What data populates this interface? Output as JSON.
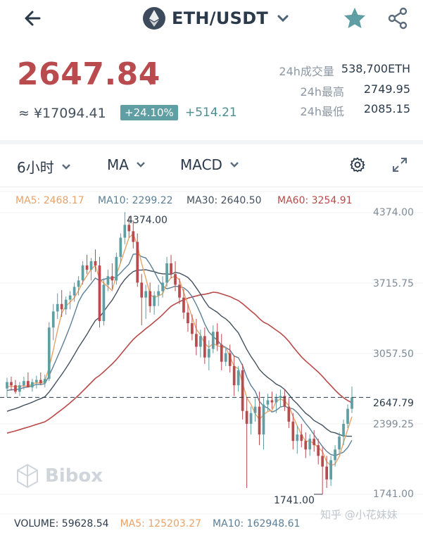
{
  "header": {
    "pair": "ETH/USDT"
  },
  "ticker": {
    "last_price": "2647.84",
    "cny_prefix": "≈",
    "cny_value": "¥17094.41",
    "change_pct": "+24.10%",
    "change_abs": "+514.21",
    "stats": [
      {
        "label": "24h成交量",
        "value": "538,700ETH"
      },
      {
        "label": "24h最高",
        "value": "2749.95"
      },
      {
        "label": "24h最低",
        "value": "2085.15"
      }
    ]
  },
  "toolbar": {
    "interval": "6小时",
    "main_indicator": "MA",
    "sub_indicator": "MACD"
  },
  "ma_legend": [
    {
      "text": "MA5: 2468.17",
      "color": "#e8a36b"
    },
    {
      "text": "MA10: 2299.22",
      "color": "#5b7f97"
    },
    {
      "text": "MA30: 2640.50",
      "color": "#44505e"
    },
    {
      "text": "MA60: 3254.91",
      "color": "#b84a49"
    }
  ],
  "y_axis": [
    "4374.00",
    "3715.75",
    "3057.50",
    "2399.25",
    "1741.00"
  ],
  "current_price_label": "2647.79",
  "high_label": "4374.00",
  "low_label": "1741.00",
  "watermark": "Bibox",
  "credit": "知乎 @小花妹妹",
  "volume_legend": [
    {
      "text": "VOLUME: 59628.54",
      "color": "#2b3a4a"
    },
    {
      "text": "MA5: 125203.27",
      "color": "#e8a36b"
    },
    {
      "text": "MA10: 162948.61",
      "color": "#5b7f97"
    }
  ],
  "colors": {
    "up": "#5f9ea3",
    "down": "#b94a4e",
    "ma5": "#e8a36b",
    "ma10": "#5b7f97",
    "ma30": "#44505e",
    "ma60": "#b84a49"
  },
  "chart_data": {
    "type": "candlestick",
    "ylim": [
      1741.0,
      4374.0
    ],
    "candles": [
      {
        "o": 2730,
        "h": 2830,
        "l": 2650,
        "c": 2790
      },
      {
        "o": 2790,
        "h": 2840,
        "l": 2710,
        "c": 2760
      },
      {
        "o": 2760,
        "h": 2810,
        "l": 2680,
        "c": 2700
      },
      {
        "o": 2700,
        "h": 2790,
        "l": 2660,
        "c": 2760
      },
      {
        "o": 2760,
        "h": 2840,
        "l": 2720,
        "c": 2800
      },
      {
        "o": 2800,
        "h": 2880,
        "l": 2760,
        "c": 2740
      },
      {
        "o": 2740,
        "h": 2820,
        "l": 2700,
        "c": 2790
      },
      {
        "o": 2790,
        "h": 2850,
        "l": 2730,
        "c": 2810
      },
      {
        "o": 2810,
        "h": 2880,
        "l": 2760,
        "c": 2780
      },
      {
        "o": 2780,
        "h": 2860,
        "l": 2740,
        "c": 2820
      },
      {
        "o": 2820,
        "h": 3350,
        "l": 2800,
        "c": 3300
      },
      {
        "o": 3300,
        "h": 3520,
        "l": 3180,
        "c": 3450
      },
      {
        "o": 3450,
        "h": 3620,
        "l": 3380,
        "c": 3520
      },
      {
        "o": 3520,
        "h": 3650,
        "l": 3400,
        "c": 3470
      },
      {
        "o": 3470,
        "h": 3590,
        "l": 3420,
        "c": 3560
      },
      {
        "o": 3560,
        "h": 3640,
        "l": 3470,
        "c": 3600
      },
      {
        "o": 3600,
        "h": 3720,
        "l": 3540,
        "c": 3680
      },
      {
        "o": 3680,
        "h": 3780,
        "l": 3600,
        "c": 3740
      },
      {
        "o": 3740,
        "h": 3920,
        "l": 3700,
        "c": 3880
      },
      {
        "o": 3880,
        "h": 3980,
        "l": 3800,
        "c": 3840
      },
      {
        "o": 3840,
        "h": 3950,
        "l": 3740,
        "c": 3920
      },
      {
        "o": 3920,
        "h": 4030,
        "l": 3820,
        "c": 3880
      },
      {
        "o": 3880,
        "h": 3960,
        "l": 3300,
        "c": 3360
      },
      {
        "o": 3360,
        "h": 3760,
        "l": 3320,
        "c": 3700
      },
      {
        "o": 3700,
        "h": 3840,
        "l": 3640,
        "c": 3780
      },
      {
        "o": 3780,
        "h": 3900,
        "l": 3660,
        "c": 3740
      },
      {
        "o": 3740,
        "h": 4000,
        "l": 3700,
        "c": 3960
      },
      {
        "o": 3960,
        "h": 4180,
        "l": 3900,
        "c": 4140
      },
      {
        "o": 4140,
        "h": 4374,
        "l": 4080,
        "c": 4260
      },
      {
        "o": 4260,
        "h": 4340,
        "l": 4140,
        "c": 4200
      },
      {
        "o": 4200,
        "h": 4300,
        "l": 4040,
        "c": 4100
      },
      {
        "o": 4100,
        "h": 4180,
        "l": 3680,
        "c": 3720
      },
      {
        "o": 3720,
        "h": 3800,
        "l": 3320,
        "c": 3580
      },
      {
        "o": 3580,
        "h": 3700,
        "l": 3380,
        "c": 3640
      },
      {
        "o": 3640,
        "h": 3720,
        "l": 3440,
        "c": 3500
      },
      {
        "o": 3500,
        "h": 3640,
        "l": 3420,
        "c": 3600
      },
      {
        "o": 3600,
        "h": 3700,
        "l": 3500,
        "c": 3640
      },
      {
        "o": 3640,
        "h": 3780,
        "l": 3580,
        "c": 3720
      },
      {
        "o": 3720,
        "h": 3960,
        "l": 3680,
        "c": 3900
      },
      {
        "o": 3900,
        "h": 3980,
        "l": 3760,
        "c": 3800
      },
      {
        "o": 3800,
        "h": 3920,
        "l": 3640,
        "c": 3700
      },
      {
        "o": 3700,
        "h": 3760,
        "l": 3520,
        "c": 3580
      },
      {
        "o": 3580,
        "h": 3660,
        "l": 3380,
        "c": 3440
      },
      {
        "o": 3440,
        "h": 3520,
        "l": 3260,
        "c": 3340
      },
      {
        "o": 3340,
        "h": 3420,
        "l": 3180,
        "c": 3240
      },
      {
        "o": 3240,
        "h": 3380,
        "l": 3040,
        "c": 3120
      },
      {
        "o": 3120,
        "h": 3280,
        "l": 3020,
        "c": 3220
      },
      {
        "o": 3220,
        "h": 3300,
        "l": 2960,
        "c": 3020
      },
      {
        "o": 3020,
        "h": 3180,
        "l": 2900,
        "c": 3100
      },
      {
        "o": 3100,
        "h": 3320,
        "l": 3060,
        "c": 3260
      },
      {
        "o": 3260,
        "h": 3340,
        "l": 3080,
        "c": 3140
      },
      {
        "o": 3140,
        "h": 3240,
        "l": 2900,
        "c": 2980
      },
      {
        "o": 2980,
        "h": 3120,
        "l": 2940,
        "c": 3060
      },
      {
        "o": 3060,
        "h": 3140,
        "l": 2880,
        "c": 2940
      },
      {
        "o": 2940,
        "h": 3040,
        "l": 2660,
        "c": 2760
      },
      {
        "o": 2760,
        "h": 2940,
        "l": 2700,
        "c": 2900
      },
      {
        "o": 2900,
        "h": 2960,
        "l": 2440,
        "c": 2520
      },
      {
        "o": 2520,
        "h": 2640,
        "l": 1800,
        "c": 2400
      },
      {
        "o": 2400,
        "h": 2560,
        "l": 2300,
        "c": 2500
      },
      {
        "o": 2500,
        "h": 2640,
        "l": 2420,
        "c": 2560
      },
      {
        "o": 2560,
        "h": 2700,
        "l": 2200,
        "c": 2300
      },
      {
        "o": 2300,
        "h": 2640,
        "l": 2160,
        "c": 2580
      },
      {
        "o": 2580,
        "h": 2680,
        "l": 2520,
        "c": 2620
      },
      {
        "o": 2620,
        "h": 2700,
        "l": 2540,
        "c": 2600
      },
      {
        "o": 2600,
        "h": 2680,
        "l": 2500,
        "c": 2640
      },
      {
        "o": 2640,
        "h": 2720,
        "l": 2560,
        "c": 2660
      },
      {
        "o": 2660,
        "h": 2720,
        "l": 2520,
        "c": 2560
      },
      {
        "o": 2560,
        "h": 2640,
        "l": 2360,
        "c": 2420
      },
      {
        "o": 2420,
        "h": 2500,
        "l": 2160,
        "c": 2240
      },
      {
        "o": 2240,
        "h": 2380,
        "l": 2120,
        "c": 2300
      },
      {
        "o": 2300,
        "h": 2400,
        "l": 2180,
        "c": 2240
      },
      {
        "o": 2240,
        "h": 2320,
        "l": 2080,
        "c": 2160
      },
      {
        "o": 2160,
        "h": 2300,
        "l": 2100,
        "c": 2260
      },
      {
        "o": 2260,
        "h": 2340,
        "l": 2140,
        "c": 2200
      },
      {
        "o": 2200,
        "h": 2260,
        "l": 2020,
        "c": 2100
      },
      {
        "o": 2100,
        "h": 2180,
        "l": 1741,
        "c": 2000
      },
      {
        "o": 2000,
        "h": 2100,
        "l": 1800,
        "c": 1880
      },
      {
        "o": 1880,
        "h": 2100,
        "l": 1820,
        "c": 2060
      },
      {
        "o": 2060,
        "h": 2200,
        "l": 2000,
        "c": 2160
      },
      {
        "o": 2160,
        "h": 2320,
        "l": 2120,
        "c": 2280
      },
      {
        "o": 2280,
        "h": 2440,
        "l": 2200,
        "c": 2400
      },
      {
        "o": 2400,
        "h": 2580,
        "l": 2360,
        "c": 2540
      },
      {
        "o": 2540,
        "h": 2749,
        "l": 2500,
        "c": 2647
      }
    ]
  }
}
